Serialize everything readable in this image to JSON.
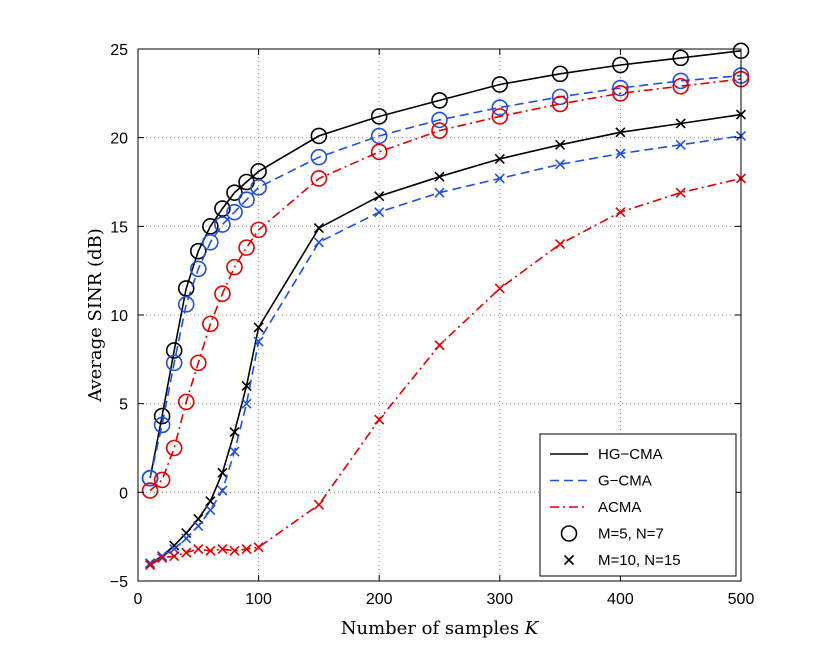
{
  "chart_data": {
    "type": "line",
    "title": "",
    "xlabel": "Number of samples K",
    "ylabel": "Average SINR (dB)",
    "xlim": [
      0,
      500
    ],
    "ylim": [
      -5,
      25
    ],
    "xticks": [
      0,
      100,
      200,
      300,
      400,
      500
    ],
    "yticks": [
      -5,
      0,
      5,
      10,
      15,
      20,
      25
    ],
    "grid": true,
    "legend_position": "bottom-right",
    "x": [
      10,
      20,
      30,
      40,
      50,
      60,
      70,
      80,
      90,
      100,
      150,
      200,
      250,
      300,
      350,
      400,
      450,
      500
    ],
    "series": [
      {
        "name": "HG-CMA",
        "config": "M=5, N=7",
        "color": "#000000",
        "line": "solid",
        "marker": "circle",
        "values": [
          0.8,
          4.3,
          8.0,
          11.5,
          13.6,
          15.0,
          16.0,
          16.9,
          17.5,
          18.1,
          20.1,
          21.2,
          22.1,
          23.0,
          23.6,
          24.1,
          24.5,
          24.9
        ]
      },
      {
        "name": "G-CMA",
        "config": "M=5, N=7",
        "color": "#1f4fe0",
        "line": "dashed",
        "marker": "circle",
        "values": [
          0.8,
          3.8,
          7.3,
          10.6,
          12.6,
          14.1,
          15.1,
          15.8,
          16.5,
          17.2,
          18.9,
          20.1,
          21.0,
          21.7,
          22.3,
          22.8,
          23.2,
          23.5
        ]
      },
      {
        "name": "ACMA",
        "config": "M=5, N=7",
        "color": "#e00000",
        "line": "dashdot",
        "marker": "circle",
        "values": [
          0.1,
          0.7,
          2.5,
          5.1,
          7.3,
          9.5,
          11.2,
          12.7,
          13.8,
          14.8,
          17.7,
          19.2,
          20.4,
          21.2,
          21.9,
          22.5,
          22.9,
          23.3
        ]
      },
      {
        "name": "HG-CMA",
        "config": "M=10, N=15",
        "color": "#000000",
        "line": "solid",
        "marker": "x",
        "values": [
          -4.0,
          -3.6,
          -3.0,
          -2.3,
          -1.5,
          -0.5,
          1.1,
          3.4,
          6.0,
          9.3,
          14.9,
          16.7,
          17.8,
          18.8,
          19.6,
          20.3,
          20.8,
          21.3
        ]
      },
      {
        "name": "G-CMA",
        "config": "M=10, N=15",
        "color": "#1f4fe0",
        "line": "dashed",
        "marker": "x",
        "values": [
          -4.0,
          -3.6,
          -3.2,
          -2.6,
          -1.9,
          -1.0,
          0.1,
          2.3,
          5.0,
          8.5,
          14.1,
          15.8,
          16.9,
          17.7,
          18.5,
          19.1,
          19.6,
          20.1
        ]
      },
      {
        "name": "ACMA",
        "config": "M=10, N=15",
        "color": "#e00000",
        "line": "dashdot",
        "marker": "x",
        "values": [
          -4.1,
          -3.7,
          -3.6,
          -3.4,
          -3.2,
          -3.3,
          -3.2,
          -3.3,
          -3.2,
          -3.1,
          -0.7,
          4.1,
          8.3,
          11.5,
          14.0,
          15.8,
          16.9,
          17.7
        ]
      }
    ],
    "legend": [
      {
        "label": "HG−CMA",
        "type": "line",
        "color": "#000000",
        "line": "solid"
      },
      {
        "label": "G−CMA",
        "type": "line",
        "color": "#1f4fe0",
        "line": "dashed"
      },
      {
        "label": "ACMA",
        "type": "line",
        "color": "#e00000",
        "line": "dashdot"
      },
      {
        "label": "M=5, N=7",
        "type": "marker",
        "color": "#000000",
        "marker": "circle"
      },
      {
        "label": "M=10, N=15",
        "type": "marker",
        "color": "#000000",
        "marker": "x"
      }
    ]
  }
}
